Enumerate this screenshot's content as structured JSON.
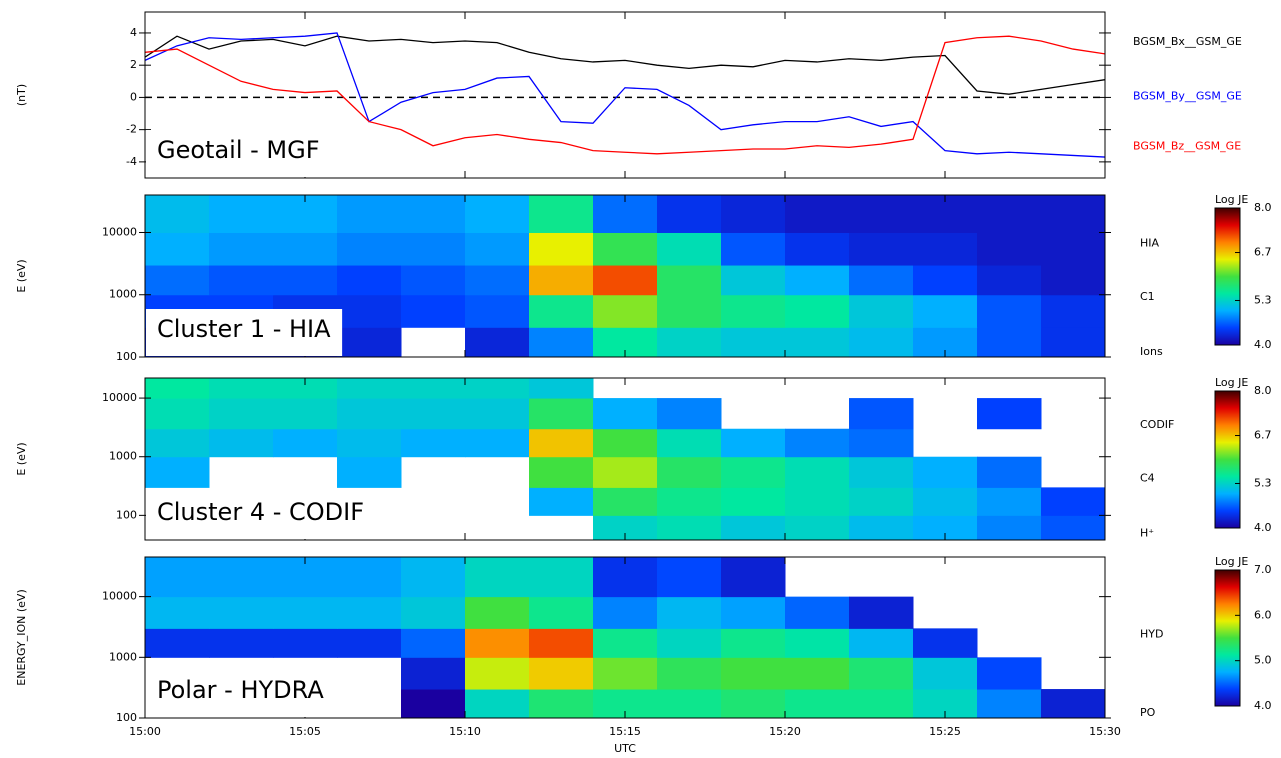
{
  "chart_data": [
    {
      "type": "line",
      "ylabel": "(nT)",
      "annotation": "Geotail - MGF",
      "xlim": [
        0,
        30
      ],
      "ylim": [
        -5,
        5.3
      ],
      "yticks": [
        -4,
        -2,
        0,
        2,
        4
      ],
      "hline": 0,
      "x": [
        0,
        1,
        2,
        3,
        4,
        5,
        6,
        7,
        8,
        9,
        10,
        11,
        12,
        13,
        14,
        15,
        16,
        17,
        18,
        19,
        20,
        21,
        22,
        23,
        24,
        25,
        26,
        27,
        28,
        29,
        30
      ],
      "series": [
        {
          "name": "BGSM_Bx__GSM_GE",
          "color": "#000000",
          "values": [
            2.5,
            3.8,
            3,
            3.5,
            3.6,
            3.2,
            3.8,
            3.5,
            3.6,
            3.4,
            3.5,
            3.4,
            2.8,
            2.4,
            2.2,
            2.3,
            2,
            1.8,
            2,
            1.9,
            2.3,
            2.2,
            2.4,
            2.3,
            2.5,
            2.6,
            0.4,
            0.2,
            0.5,
            0.8,
            1.1
          ]
        },
        {
          "name": "BGSM_By__GSM_GE",
          "color": "#0000ff",
          "values": [
            2.3,
            3.2,
            3.7,
            3.6,
            3.7,
            3.8,
            4,
            -1.5,
            -0.3,
            0.3,
            0.5,
            1.2,
            1.3,
            -1.5,
            -1.6,
            0.6,
            0.5,
            -0.5,
            -2,
            -1.7,
            -1.5,
            -1.5,
            -1.2,
            -1.8,
            -1.5,
            -3.3,
            -3.5,
            -3.4,
            -3.5,
            -3.6,
            -3.7
          ]
        },
        {
          "name": "BGSM_Bz__GSM_GE",
          "color": "#ff0000",
          "values": [
            2.8,
            3,
            2,
            1,
            0.5,
            0.3,
            0.4,
            -1.5,
            -2,
            -3,
            -2.5,
            -2.3,
            -2.6,
            -2.8,
            -3.3,
            -3.4,
            -3.5,
            -3.4,
            -3.3,
            -3.2,
            -3.2,
            -3,
            -3.1,
            -2.9,
            -2.6,
            3.4,
            3.7,
            3.8,
            3.5,
            3,
            2.7
          ]
        }
      ]
    },
    {
      "type": "heatmap",
      "ylabel": "E (eV)",
      "annotation": "Cluster 1 - HIA",
      "channel_labels": [
        "HIA",
        "C1",
        "Ions"
      ],
      "log_y": true,
      "xlim": [
        0,
        30
      ],
      "ylim": [
        100,
        40000
      ],
      "yticks": [
        100,
        1000,
        10000
      ],
      "colorbar_title": "Log JE",
      "zlim": [
        4,
        8
      ],
      "zticks": [
        {
          "value": 4,
          "label": "4.0"
        },
        {
          "value": 5.3,
          "label": "5.3"
        },
        {
          "value": 6.7,
          "label": "6.7"
        },
        {
          "value": 8,
          "label": "8.0"
        }
      ],
      "xbins": [
        0,
        2,
        4,
        6,
        8,
        10,
        12,
        14,
        16,
        18,
        20,
        22,
        24,
        26,
        28,
        30
      ],
      "ybins": [
        100,
        300,
        1000,
        3000,
        10000,
        40000
      ],
      "z": [
        [
          4.3,
          4.2,
          4.2,
          4.3,
          null,
          4.3,
          4.8,
          5.5,
          5.3,
          5.2,
          5.2,
          5.1,
          4.9,
          4.6,
          4.4
        ],
        [
          4.5,
          4.5,
          4.4,
          4.4,
          4.5,
          4.6,
          5.6,
          6.2,
          5.8,
          5.6,
          5.5,
          5.2,
          5.0,
          4.6,
          4.4
        ],
        [
          4.7,
          4.6,
          4.6,
          4.5,
          4.6,
          4.7,
          6.8,
          7.2,
          5.8,
          5.2,
          5.0,
          4.7,
          4.5,
          4.3,
          4.2
        ],
        [
          5.0,
          4.9,
          4.9,
          4.8,
          4.8,
          4.9,
          6.5,
          5.9,
          5.4,
          4.6,
          4.4,
          4.3,
          4.3,
          4.2,
          4.2
        ],
        [
          5.1,
          5.0,
          5.0,
          4.9,
          4.9,
          5.0,
          5.6,
          4.7,
          4.4,
          4.3,
          4.2,
          4.2,
          4.2,
          4.2,
          4.2
        ]
      ],
      "colormap": [
        "#1a00a0",
        "#0040ff",
        "#00b0ff",
        "#00e8a0",
        "#40e040",
        "#e8f000",
        "#ff8000",
        "#e00000",
        "#400000"
      ]
    },
    {
      "type": "heatmap",
      "ylabel": "E (eV)",
      "annotation": "Cluster 4 - CODIF",
      "channel_labels": [
        "CODIF",
        "C4",
        "H⁺"
      ],
      "log_y": true,
      "xlim": [
        0,
        30
      ],
      "ylim": [
        38,
        22000
      ],
      "yticks": [
        100,
        1000,
        10000
      ],
      "colorbar_title": "Log JE",
      "zlim": [
        4,
        8
      ],
      "zticks": [
        {
          "value": 4,
          "label": "4.0"
        },
        {
          "value": 5.3,
          "label": "5.3"
        },
        {
          "value": 6.7,
          "label": "6.7"
        },
        {
          "value": 8,
          "label": "8.0"
        }
      ],
      "xbins": [
        0,
        2,
        4,
        6,
        8,
        10,
        12,
        14,
        16,
        18,
        20,
        22,
        24,
        26,
        28,
        30
      ],
      "ybins": [
        38,
        100,
        300,
        1000,
        3000,
        10000,
        22000
      ],
      "z": [
        [
          null,
          null,
          null,
          null,
          null,
          null,
          null,
          5.3,
          5.4,
          5.2,
          5.3,
          5.1,
          5.0,
          4.8,
          4.6
        ],
        [
          null,
          null,
          null,
          null,
          null,
          null,
          5.0,
          5.8,
          5.6,
          5.5,
          5.4,
          5.3,
          5.1,
          4.9,
          4.5
        ],
        [
          5.0,
          null,
          null,
          5.0,
          null,
          null,
          6.0,
          6.3,
          5.8,
          5.6,
          5.4,
          5.2,
          5.0,
          4.7,
          null
        ],
        [
          5.2,
          5.1,
          5.0,
          5.1,
          5.0,
          5.0,
          6.7,
          6.0,
          5.4,
          5.0,
          4.8,
          4.7,
          null,
          null,
          null
        ],
        [
          5.4,
          5.3,
          5.3,
          5.2,
          5.2,
          5.2,
          5.8,
          5.0,
          4.8,
          null,
          null,
          4.6,
          null,
          4.5,
          null
        ],
        [
          5.5,
          5.4,
          5.4,
          5.3,
          5.3,
          5.3,
          5.2,
          null,
          null,
          null,
          null,
          null,
          null,
          null,
          null
        ]
      ],
      "colormap": [
        "#1a00a0",
        "#0040ff",
        "#00b0ff",
        "#00e8a0",
        "#40e040",
        "#e8f000",
        "#ff8000",
        "#e00000",
        "#400000"
      ]
    },
    {
      "type": "heatmap",
      "ylabel": "ENERGY_ION (eV)",
      "xlabel": "UTC",
      "annotation": "Polar - HYDRA",
      "channel_labels": [
        "HYD",
        "PO"
      ],
      "log_y": true,
      "xlim": [
        0,
        30
      ],
      "ylim": [
        100,
        45000
      ],
      "yticks": [
        100,
        1000,
        10000
      ],
      "xticks": [
        {
          "value": 0,
          "label": "15:00"
        },
        {
          "value": 5,
          "label": "15:05"
        },
        {
          "value": 10,
          "label": "15:10"
        },
        {
          "value": 15,
          "label": "15:15"
        },
        {
          "value": 20,
          "label": "15:20"
        },
        {
          "value": 25,
          "label": "15:25"
        },
        {
          "value": 30,
          "label": "15:30"
        }
      ],
      "colorbar_title": "Log JE",
      "zlim": [
        4,
        7
      ],
      "zticks": [
        {
          "value": 4,
          "label": "4.0"
        },
        {
          "value": 5,
          "label": "5.0"
        },
        {
          "value": 6,
          "label": "6.0"
        },
        {
          "value": 7,
          "label": "7.0"
        }
      ],
      "xbins": [
        0,
        2,
        4,
        6,
        8,
        10,
        12,
        14,
        16,
        18,
        20,
        22,
        24,
        26,
        28,
        30
      ],
      "ybins": [
        100,
        300,
        1000,
        3000,
        10000,
        45000
      ],
      "z": [
        [
          null,
          null,
          null,
          null,
          4.0,
          5.0,
          5.3,
          5.2,
          5.2,
          5.3,
          5.2,
          5.2,
          5.0,
          4.6,
          4.2
        ],
        [
          null,
          null,
          null,
          null,
          4.2,
          5.8,
          6.0,
          5.6,
          5.4,
          5.5,
          5.5,
          5.3,
          4.9,
          4.4,
          null
        ],
        [
          4.3,
          4.3,
          4.3,
          4.3,
          4.5,
          6.2,
          6.4,
          5.2,
          5.0,
          5.2,
          5.1,
          4.8,
          4.3,
          null,
          null
        ],
        [
          4.8,
          4.8,
          4.8,
          4.8,
          4.9,
          5.5,
          5.2,
          4.6,
          4.8,
          4.7,
          4.5,
          4.2,
          null,
          null,
          null
        ],
        [
          4.7,
          4.7,
          4.7,
          4.7,
          4.8,
          5.0,
          5.0,
          4.3,
          4.4,
          4.2,
          null,
          null,
          null,
          null,
          null
        ]
      ],
      "colormap": [
        "#1a00a0",
        "#0040ff",
        "#00b0ff",
        "#00e8a0",
        "#40e040",
        "#e8f000",
        "#ff8000",
        "#e00000",
        "#400000"
      ]
    }
  ]
}
